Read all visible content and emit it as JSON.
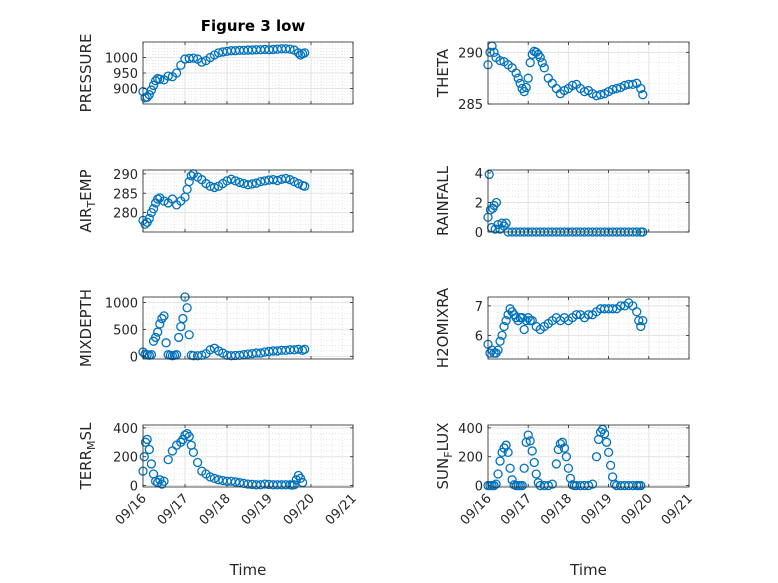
{
  "figure_title": "Figure 3 low",
  "chart_data": [
    {
      "type": "scatter",
      "ylabel": "PRESSURE",
      "ylim": [
        850,
        1050
      ],
      "yticks": [
        900,
        950,
        1000
      ],
      "ytick_labels": [
        "900",
        "950",
        "1000"
      ],
      "xlim": [
        0,
        5
      ],
      "xticks": [
        0,
        1,
        2,
        3,
        4,
        5
      ],
      "xtick_labels": [
        "09/16",
        "09/17",
        "09/18",
        "09/19",
        "09/20",
        "09/21"
      ],
      "show_xtick_labels": false,
      "grid": true,
      "color": "#0072BD",
      "x": [
        0.0,
        0.05,
        0.1,
        0.15,
        0.2,
        0.25,
        0.3,
        0.35,
        0.4,
        0.5,
        0.6,
        0.7,
        0.8,
        0.9,
        1.0,
        1.1,
        1.2,
        1.3,
        1.4,
        1.5,
        1.6,
        1.7,
        1.8,
        1.9,
        2.0,
        2.1,
        2.2,
        2.3,
        2.4,
        2.5,
        2.6,
        2.7,
        2.8,
        2.9,
        3.0,
        3.1,
        3.2,
        3.3,
        3.4,
        3.5,
        3.6,
        3.7,
        3.75,
        3.8,
        3.85
      ],
      "y": [
        890,
        870,
        872,
        880,
        895,
        910,
        925,
        932,
        930,
        928,
        940,
        938,
        950,
        975,
        995,
        997,
        998,
        995,
        985,
        990,
        1000,
        1008,
        1015,
        1018,
        1020,
        1022,
        1022,
        1023,
        1023,
        1024,
        1024,
        1025,
        1025,
        1026,
        1025,
        1026,
        1027,
        1028,
        1028,
        1027,
        1024,
        1015,
        1008,
        1012,
        1015
      ]
    },
    {
      "type": "scatter",
      "ylabel": "THETA",
      "ylim": [
        285,
        291
      ],
      "yticks": [
        285,
        290
      ],
      "ytick_labels": [
        "285",
        "290"
      ],
      "xlim": [
        0,
        5
      ],
      "xticks": [
        0,
        1,
        2,
        3,
        4,
        5
      ],
      "xtick_labels": [
        "09/16",
        "09/17",
        "09/18",
        "09/19",
        "09/20",
        "09/21"
      ],
      "show_xtick_labels": false,
      "grid": true,
      "color": "#0072BD",
      "x": [
        0.0,
        0.05,
        0.1,
        0.15,
        0.2,
        0.3,
        0.4,
        0.5,
        0.6,
        0.7,
        0.75,
        0.8,
        0.85,
        0.9,
        0.95,
        1.0,
        1.05,
        1.1,
        1.15,
        1.2,
        1.25,
        1.3,
        1.35,
        1.4,
        1.5,
        1.6,
        1.7,
        1.8,
        1.9,
        2.0,
        2.1,
        2.2,
        2.3,
        2.4,
        2.5,
        2.6,
        2.7,
        2.8,
        2.9,
        3.0,
        3.1,
        3.2,
        3.3,
        3.4,
        3.5,
        3.6,
        3.7,
        3.8,
        3.85
      ],
      "y": [
        288.8,
        290.0,
        290.6,
        290.0,
        289.5,
        289.2,
        289.1,
        288.8,
        288.5,
        288.0,
        287.5,
        287.0,
        286.5,
        286.2,
        286.6,
        287.5,
        289.0,
        289.8,
        290.1,
        290.0,
        289.8,
        289.5,
        289.0,
        288.5,
        287.5,
        287.0,
        286.5,
        286.0,
        286.3,
        286.5,
        286.8,
        286.9,
        286.5,
        286.2,
        286.3,
        286.0,
        285.8,
        285.9,
        286.0,
        286.2,
        286.4,
        286.5,
        286.6,
        286.8,
        286.9,
        286.9,
        287.0,
        286.5,
        285.9
      ]
    },
    {
      "type": "scatter",
      "ylabel": "AIR",
      "ylabel_sub": "T",
      "ylabel_rest": "EMP",
      "ylim": [
        275,
        291
      ],
      "yticks": [
        280,
        285,
        290
      ],
      "ytick_labels": [
        "280",
        "285",
        "290"
      ],
      "xlim": [
        0,
        5
      ],
      "xticks": [
        0,
        1,
        2,
        3,
        4,
        5
      ],
      "xtick_labels": [
        "09/16",
        "09/17",
        "09/18",
        "09/19",
        "09/20",
        "09/21"
      ],
      "show_xtick_labels": false,
      "grid": true,
      "color": "#0072BD",
      "x": [
        0.0,
        0.05,
        0.1,
        0.15,
        0.2,
        0.25,
        0.3,
        0.35,
        0.4,
        0.5,
        0.6,
        0.7,
        0.8,
        0.9,
        1.0,
        1.05,
        1.1,
        1.15,
        1.2,
        1.3,
        1.4,
        1.5,
        1.6,
        1.7,
        1.8,
        1.9,
        2.0,
        2.1,
        2.2,
        2.3,
        2.4,
        2.5,
        2.6,
        2.7,
        2.8,
        2.9,
        3.0,
        3.1,
        3.2,
        3.3,
        3.4,
        3.5,
        3.6,
        3.7,
        3.8,
        3.85
      ],
      "y": [
        278.0,
        277.0,
        277.5,
        278.5,
        280.0,
        281.0,
        282.5,
        283.5,
        283.8,
        283.0,
        282.5,
        283.5,
        282.0,
        283.0,
        284.0,
        286.0,
        288.0,
        289.5,
        290.0,
        289.2,
        288.5,
        287.5,
        286.8,
        286.5,
        286.8,
        287.5,
        288.2,
        288.6,
        288.2,
        287.8,
        287.5,
        287.2,
        287.4,
        287.6,
        288.0,
        288.2,
        288.4,
        288.5,
        288.3,
        288.6,
        288.8,
        288.5,
        288.0,
        287.5,
        287.0,
        286.8
      ]
    },
    {
      "type": "scatter",
      "ylabel": "RAINFALL",
      "ylim": [
        0,
        4.2
      ],
      "yticks": [
        0,
        2,
        4
      ],
      "ytick_labels": [
        "0",
        "2",
        "4"
      ],
      "xlim": [
        0,
        5
      ],
      "xticks": [
        0,
        1,
        2,
        3,
        4,
        5
      ],
      "xtick_labels": [
        "09/16",
        "09/17",
        "09/18",
        "09/19",
        "09/20",
        "09/21"
      ],
      "show_xtick_labels": false,
      "grid": true,
      "color": "#0072BD",
      "x": [
        0.0,
        0.03,
        0.06,
        0.09,
        0.12,
        0.15,
        0.18,
        0.21,
        0.25,
        0.3,
        0.35,
        0.4,
        0.45,
        0.5,
        0.6,
        0.7,
        0.8,
        0.9,
        1.0,
        1.1,
        1.2,
        1.3,
        1.4,
        1.5,
        1.6,
        1.7,
        1.8,
        1.9,
        2.0,
        2.1,
        2.2,
        2.3,
        2.4,
        2.5,
        2.6,
        2.7,
        2.8,
        2.9,
        3.0,
        3.1,
        3.2,
        3.3,
        3.4,
        3.5,
        3.6,
        3.7,
        3.8,
        3.85
      ],
      "y": [
        1.0,
        3.9,
        1.5,
        0.3,
        1.6,
        1.8,
        0.2,
        2.0,
        0.5,
        0.2,
        0.6,
        0.4,
        0.6,
        0.0,
        0.0,
        0.0,
        0.0,
        0.0,
        0.0,
        0.0,
        0.0,
        0.0,
        0.0,
        0.0,
        0.0,
        0.0,
        0.0,
        0.0,
        0.0,
        0.0,
        0.0,
        0.0,
        0.0,
        0.0,
        0.0,
        0.0,
        0.0,
        0.0,
        0.0,
        0.0,
        0.0,
        0.0,
        0.0,
        0.0,
        0.0,
        0.0,
        0.0,
        0.0
      ]
    },
    {
      "type": "scatter",
      "ylabel": "MIXDEPTH",
      "ylim": [
        -50,
        1100
      ],
      "yticks": [
        0,
        500,
        1000
      ],
      "ytick_labels": [
        "0",
        "500",
        "1000"
      ],
      "xlim": [
        0,
        5
      ],
      "xticks": [
        0,
        1,
        2,
        3,
        4,
        5
      ],
      "xtick_labels": [
        "09/16",
        "09/17",
        "09/18",
        "09/19",
        "09/20",
        "09/21"
      ],
      "show_xtick_labels": false,
      "grid": true,
      "color": "#0072BD",
      "x": [
        0.0,
        0.05,
        0.1,
        0.15,
        0.2,
        0.25,
        0.3,
        0.35,
        0.4,
        0.45,
        0.5,
        0.55,
        0.6,
        0.65,
        0.7,
        0.75,
        0.8,
        0.85,
        0.9,
        0.95,
        1.0,
        1.05,
        1.1,
        1.15,
        1.2,
        1.3,
        1.4,
        1.5,
        1.6,
        1.7,
        1.8,
        1.9,
        2.0,
        2.1,
        2.2,
        2.3,
        2.4,
        2.5,
        2.6,
        2.7,
        2.8,
        2.9,
        3.0,
        3.1,
        3.2,
        3.3,
        3.4,
        3.5,
        3.6,
        3.7,
        3.8,
        3.85
      ],
      "y": [
        80,
        40,
        30,
        20,
        30,
        280,
        350,
        450,
        600,
        700,
        750,
        250,
        30,
        20,
        10,
        20,
        30,
        350,
        550,
        700,
        1100,
        900,
        400,
        20,
        10,
        10,
        20,
        50,
        120,
        150,
        100,
        60,
        20,
        10,
        15,
        20,
        30,
        40,
        50,
        60,
        60,
        80,
        90,
        100,
        100,
        110,
        110,
        120,
        120,
        130,
        110,
        130
      ]
    },
    {
      "type": "scatter",
      "ylabel": "H2OMIXRA",
      "ylim": [
        5.2,
        7.3
      ],
      "yticks": [
        6,
        7
      ],
      "ytick_labels": [
        "6",
        "7"
      ],
      "xlim": [
        0,
        5
      ],
      "xticks": [
        0,
        1,
        2,
        3,
        4,
        5
      ],
      "xtick_labels": [
        "09/16",
        "09/17",
        "09/18",
        "09/19",
        "09/20",
        "09/21"
      ],
      "show_xtick_labels": false,
      "grid": true,
      "color": "#0072BD",
      "x": [
        0.0,
        0.05,
        0.1,
        0.15,
        0.2,
        0.25,
        0.3,
        0.35,
        0.4,
        0.45,
        0.5,
        0.55,
        0.6,
        0.65,
        0.7,
        0.75,
        0.8,
        0.85,
        0.9,
        0.95,
        1.0,
        1.05,
        1.1,
        1.2,
        1.3,
        1.4,
        1.5,
        1.6,
        1.7,
        1.8,
        1.9,
        2.0,
        2.1,
        2.2,
        2.3,
        2.4,
        2.5,
        2.6,
        2.7,
        2.8,
        2.9,
        3.0,
        3.1,
        3.2,
        3.3,
        3.4,
        3.5,
        3.6,
        3.7,
        3.75,
        3.8,
        3.85
      ],
      "y": [
        5.7,
        5.4,
        5.5,
        5.4,
        5.4,
        5.5,
        5.8,
        6.0,
        6.3,
        6.5,
        6.7,
        6.9,
        6.8,
        6.7,
        6.6,
        6.5,
        6.6,
        6.6,
        6.2,
        6.5,
        6.6,
        6.5,
        6.5,
        6.3,
        6.2,
        6.3,
        6.4,
        6.5,
        6.6,
        6.5,
        6.6,
        6.5,
        6.6,
        6.7,
        6.7,
        6.6,
        6.7,
        6.7,
        6.8,
        6.9,
        6.9,
        6.9,
        6.9,
        6.9,
        7.0,
        7.0,
        7.1,
        7.0,
        6.8,
        6.5,
        6.3,
        6.5
      ]
    },
    {
      "type": "scatter",
      "ylabel": "TERR",
      "ylabel_sub": "M",
      "ylabel_rest": "SL",
      "ylim": [
        -10,
        420
      ],
      "yticks": [
        0,
        200,
        400
      ],
      "ytick_labels": [
        "0",
        "200",
        "400"
      ],
      "xlim": [
        0,
        5
      ],
      "xticks": [
        0,
        1,
        2,
        3,
        4,
        5
      ],
      "xtick_labels": [
        "09/16",
        "09/17",
        "09/18",
        "09/19",
        "09/20",
        "09/21"
      ],
      "show_xtick_labels": true,
      "xlabel": "Time",
      "grid": true,
      "color": "#0072BD",
      "x": [
        0.0,
        0.03,
        0.06,
        0.1,
        0.15,
        0.2,
        0.25,
        0.3,
        0.35,
        0.4,
        0.45,
        0.5,
        0.6,
        0.7,
        0.8,
        0.9,
        0.95,
        1.0,
        1.05,
        1.1,
        1.15,
        1.2,
        1.3,
        1.4,
        1.5,
        1.6,
        1.7,
        1.8,
        1.9,
        2.0,
        2.1,
        2.2,
        2.3,
        2.4,
        2.5,
        2.6,
        2.7,
        2.8,
        2.9,
        3.0,
        3.1,
        3.2,
        3.3,
        3.4,
        3.5,
        3.55,
        3.6,
        3.65,
        3.7,
        3.75,
        3.8
      ],
      "y": [
        100,
        200,
        300,
        320,
        250,
        150,
        80,
        30,
        20,
        40,
        10,
        30,
        180,
        240,
        280,
        300,
        320,
        350,
        360,
        340,
        280,
        230,
        160,
        100,
        80,
        60,
        50,
        40,
        35,
        30,
        30,
        25,
        20,
        15,
        10,
        8,
        5,
        5,
        10,
        8,
        5,
        5,
        5,
        5,
        5,
        3,
        5,
        40,
        70,
        50,
        20
      ]
    },
    {
      "type": "scatter",
      "ylabel": "SUN",
      "ylabel_sub": "F",
      "ylabel_rest": "LUX",
      "ylim": [
        -10,
        420
      ],
      "yticks": [
        0,
        200,
        400
      ],
      "ytick_labels": [
        "0",
        "200",
        "400"
      ],
      "xlim": [
        0,
        5
      ],
      "xticks": [
        0,
        1,
        2,
        3,
        4,
        5
      ],
      "xtick_labels": [
        "09/16",
        "09/17",
        "09/18",
        "09/19",
        "09/20",
        "09/21"
      ],
      "show_xtick_labels": true,
      "xlabel": "Time",
      "grid": true,
      "color": "#0072BD",
      "x": [
        0.0,
        0.05,
        0.1,
        0.15,
        0.2,
        0.25,
        0.3,
        0.35,
        0.4,
        0.45,
        0.5,
        0.55,
        0.6,
        0.65,
        0.7,
        0.75,
        0.8,
        0.85,
        0.9,
        0.95,
        1.0,
        1.05,
        1.1,
        1.15,
        1.2,
        1.25,
        1.3,
        1.4,
        1.5,
        1.6,
        1.7,
        1.75,
        1.8,
        1.85,
        1.9,
        1.95,
        2.0,
        2.05,
        2.1,
        2.15,
        2.2,
        2.3,
        2.4,
        2.5,
        2.6,
        2.7,
        2.75,
        2.8,
        2.85,
        2.9,
        2.95,
        3.0,
        3.05,
        3.1,
        3.15,
        3.2,
        3.3,
        3.4,
        3.5,
        3.6,
        3.7,
        3.75,
        3.8
      ],
      "y": [
        0,
        0,
        0,
        0,
        10,
        80,
        170,
        230,
        260,
        280,
        230,
        120,
        40,
        5,
        0,
        0,
        0,
        0,
        120,
        300,
        350,
        310,
        240,
        160,
        80,
        20,
        0,
        0,
        0,
        10,
        150,
        250,
        290,
        300,
        260,
        200,
        120,
        50,
        5,
        0,
        0,
        0,
        0,
        0,
        10,
        200,
        320,
        370,
        390,
        360,
        300,
        230,
        140,
        60,
        10,
        0,
        0,
        0,
        0,
        0,
        0,
        0,
        0
      ]
    }
  ]
}
